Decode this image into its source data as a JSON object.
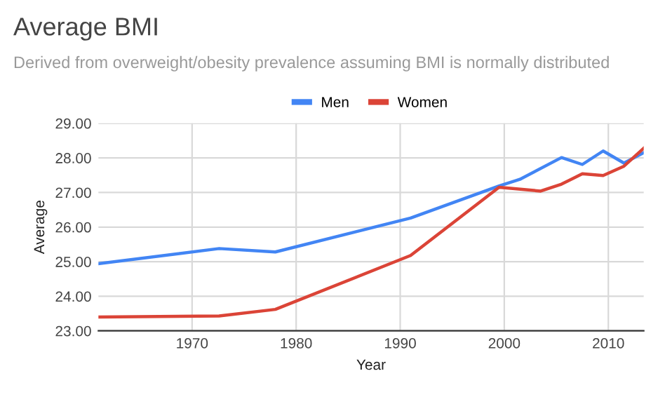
{
  "chart_data": {
    "type": "line",
    "title": "Average BMI",
    "subtitle": "Derived from overweight/obesity prevalence assuming BMI is normally distributed",
    "xlabel": "Year",
    "ylabel": "Average",
    "xlim": [
      1961,
      2013.4
    ],
    "xticks": [
      1970,
      1980,
      1990,
      2000,
      2010
    ],
    "ylim": [
      23,
      29
    ],
    "yticks": [
      {
        "value": 23,
        "label": "23.00"
      },
      {
        "value": 24,
        "label": "24.00"
      },
      {
        "value": 25,
        "label": "25.00"
      },
      {
        "value": 26,
        "label": "26.00"
      },
      {
        "value": 27,
        "label": "27.00"
      },
      {
        "value": 28,
        "label": "28.00"
      },
      {
        "value": 29,
        "label": "29.00"
      }
    ],
    "grid": true,
    "legend": "top",
    "marker": "none",
    "line_style": "solid",
    "series": [
      {
        "name": "Men",
        "color": "#4285f4",
        "x": [
          1961,
          1972.6,
          1978,
          1991,
          1999.5,
          2001.5,
          2005.5,
          2007.5,
          2009.5,
          2011.5,
          2013.4
        ],
        "values": [
          24.94,
          25.38,
          25.28,
          26.26,
          27.19,
          27.38,
          28.01,
          27.81,
          28.2,
          27.85,
          28.15
        ]
      },
      {
        "name": "Women",
        "color": "#db4437",
        "x": [
          1961,
          1972.6,
          1978,
          1991,
          1999.5,
          2003.5,
          2005.5,
          2007.5,
          2009.5,
          2011.5,
          2013.4
        ],
        "values": [
          23.4,
          23.43,
          23.62,
          25.18,
          27.15,
          27.04,
          27.24,
          27.54,
          27.49,
          27.76,
          28.28
        ]
      }
    ]
  }
}
